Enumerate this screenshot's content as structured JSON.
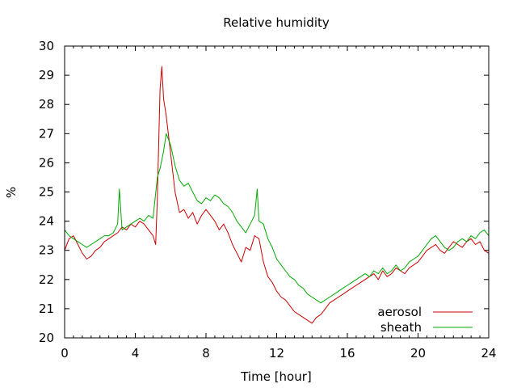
{
  "chart_data": {
    "type": "line",
    "title": "Relative humidity",
    "xlabel": "Time [hour]",
    "ylabel": "%",
    "xlim": [
      0,
      24
    ],
    "ylim": [
      20,
      30
    ],
    "xticks": [
      0,
      4,
      8,
      12,
      16,
      20,
      24
    ],
    "yticks": [
      20,
      21,
      22,
      23,
      24,
      25,
      26,
      27,
      28,
      29,
      30
    ],
    "xtick_labels": [
      "0",
      "4",
      "8",
      "12",
      "16",
      "20",
      "24"
    ],
    "ytick_labels": [
      "20",
      "21",
      "22",
      "23",
      "24",
      "25",
      "26",
      "27",
      "28",
      "29",
      "30"
    ],
    "grid": false,
    "legend_position": "bottom-right",
    "series": [
      {
        "name": "aerosol",
        "color": "#cc0000",
        "x": [
          0,
          0.25,
          0.5,
          0.75,
          1.0,
          1.25,
          1.5,
          1.75,
          2.0,
          2.25,
          2.5,
          2.75,
          3.0,
          3.25,
          3.5,
          3.75,
          4.0,
          4.25,
          4.5,
          4.75,
          5.0,
          5.15,
          5.25,
          5.4,
          5.5,
          5.6,
          5.75,
          6.0,
          6.25,
          6.5,
          6.75,
          7.0,
          7.25,
          7.5,
          7.75,
          8.0,
          8.25,
          8.5,
          8.75,
          9.0,
          9.25,
          9.5,
          9.75,
          10.0,
          10.25,
          10.5,
          10.75,
          11.0,
          11.25,
          11.5,
          11.75,
          12.0,
          12.25,
          12.5,
          12.75,
          13.0,
          13.25,
          13.5,
          13.75,
          14.0,
          14.25,
          14.5,
          14.75,
          15.0,
          15.25,
          15.5,
          15.75,
          16.0,
          16.25,
          16.5,
          16.75,
          17.0,
          17.25,
          17.5,
          17.75,
          18.0,
          18.25,
          18.5,
          18.75,
          19.0,
          19.25,
          19.5,
          19.75,
          20.0,
          20.25,
          20.5,
          20.75,
          21.0,
          21.25,
          21.5,
          21.75,
          22.0,
          22.25,
          22.5,
          22.75,
          23.0,
          23.25,
          23.5,
          23.75,
          24.0
        ],
        "y": [
          23.0,
          23.4,
          23.5,
          23.2,
          22.9,
          22.7,
          22.8,
          23.0,
          23.1,
          23.3,
          23.4,
          23.5,
          23.6,
          23.8,
          23.7,
          23.9,
          23.8,
          24.0,
          23.9,
          23.7,
          23.5,
          23.2,
          24.8,
          28.5,
          29.3,
          28.2,
          27.6,
          26.3,
          25.0,
          24.3,
          24.4,
          24.1,
          24.3,
          23.9,
          24.2,
          24.4,
          24.2,
          24.0,
          23.7,
          23.9,
          23.6,
          23.2,
          22.9,
          22.6,
          23.1,
          23.0,
          23.5,
          23.4,
          22.6,
          22.1,
          21.9,
          21.6,
          21.4,
          21.3,
          21.1,
          20.9,
          20.8,
          20.7,
          20.6,
          20.5,
          20.7,
          20.8,
          21.0,
          21.2,
          21.3,
          21.4,
          21.5,
          21.6,
          21.7,
          21.8,
          21.9,
          22.0,
          22.1,
          22.2,
          22.0,
          22.3,
          22.1,
          22.2,
          22.4,
          22.3,
          22.2,
          22.4,
          22.5,
          22.6,
          22.8,
          23.0,
          23.1,
          23.2,
          23.0,
          22.9,
          23.1,
          23.3,
          23.2,
          23.1,
          23.3,
          23.4,
          23.2,
          23.3,
          23.0,
          22.9
        ]
      },
      {
        "name": "sheath",
        "color": "#00aa00",
        "x": [
          0,
          0.25,
          0.5,
          0.75,
          1.0,
          1.25,
          1.5,
          1.75,
          2.0,
          2.25,
          2.5,
          2.75,
          3.0,
          3.1,
          3.25,
          3.5,
          3.75,
          4.0,
          4.25,
          4.5,
          4.75,
          5.0,
          5.25,
          5.4,
          5.6,
          5.75,
          6.0,
          6.25,
          6.5,
          6.75,
          7.0,
          7.25,
          7.5,
          7.75,
          8.0,
          8.25,
          8.5,
          8.75,
          9.0,
          9.25,
          9.5,
          9.75,
          10.0,
          10.25,
          10.5,
          10.75,
          10.9,
          11.0,
          11.25,
          11.5,
          11.75,
          12.0,
          12.25,
          12.5,
          12.75,
          13.0,
          13.25,
          13.5,
          13.75,
          14.0,
          14.25,
          14.5,
          14.75,
          15.0,
          15.25,
          15.5,
          15.75,
          16.0,
          16.25,
          16.5,
          16.75,
          17.0,
          17.25,
          17.5,
          17.75,
          18.0,
          18.25,
          18.5,
          18.75,
          19.0,
          19.25,
          19.5,
          19.75,
          20.0,
          20.25,
          20.5,
          20.75,
          21.0,
          21.25,
          21.5,
          21.75,
          22.0,
          22.25,
          22.5,
          22.75,
          23.0,
          23.25,
          23.5,
          23.75,
          24.0
        ],
        "y": [
          23.7,
          23.5,
          23.4,
          23.3,
          23.2,
          23.1,
          23.2,
          23.3,
          23.4,
          23.5,
          23.5,
          23.6,
          23.9,
          25.1,
          23.7,
          23.8,
          23.9,
          24.0,
          24.1,
          24.0,
          24.2,
          24.1,
          25.5,
          25.8,
          26.4,
          27.0,
          26.6,
          25.9,
          25.4,
          25.2,
          25.3,
          25.0,
          24.7,
          24.6,
          24.8,
          24.7,
          24.9,
          24.8,
          24.6,
          24.5,
          24.3,
          24.0,
          23.8,
          23.6,
          23.9,
          24.2,
          25.1,
          24.0,
          23.9,
          23.4,
          23.1,
          22.7,
          22.5,
          22.3,
          22.1,
          22.0,
          21.8,
          21.7,
          21.5,
          21.4,
          21.3,
          21.2,
          21.3,
          21.4,
          21.5,
          21.6,
          21.7,
          21.8,
          21.9,
          22.0,
          22.1,
          22.2,
          22.1,
          22.3,
          22.2,
          22.4,
          22.2,
          22.3,
          22.5,
          22.3,
          22.4,
          22.6,
          22.7,
          22.8,
          23.0,
          23.2,
          23.4,
          23.5,
          23.3,
          23.1,
          23.0,
          23.1,
          23.3,
          23.4,
          23.3,
          23.5,
          23.4,
          23.6,
          23.7,
          23.5
        ]
      }
    ]
  }
}
